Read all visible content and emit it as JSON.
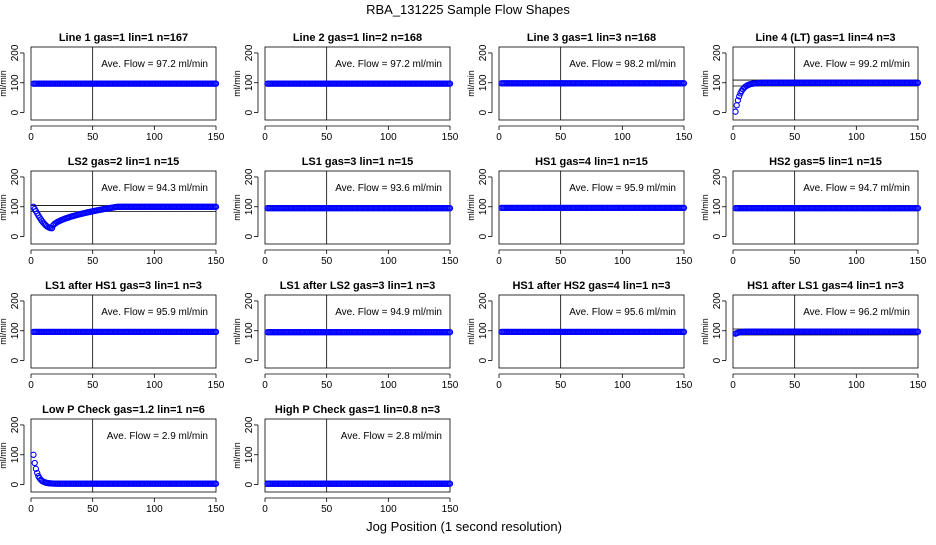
{
  "title": "RBA_131225  Sample Flow Shapes",
  "xlabel": "Jog Position (1 second resolution)",
  "colors": {
    "points": "#0000ff",
    "lines": "#000000"
  },
  "chart_data": [
    {
      "type": "scatter",
      "title": "Line 1 gas=1 lin=1 n=167",
      "ylabel": "ml/min",
      "annotation": "Ave. Flow = 97.2  ml/min",
      "xlim": [
        0,
        150
      ],
      "ylim": [
        -25,
        220
      ],
      "xticks": [
        0,
        50,
        100,
        150
      ],
      "yticks": [
        0,
        100,
        200
      ],
      "vline": 50,
      "hlines": [],
      "shape": {
        "kind": "flat",
        "level": 97.2
      }
    },
    {
      "type": "scatter",
      "title": "Line 2 gas=1 lin=2 n=168",
      "ylabel": "ml/min",
      "annotation": "Ave. Flow = 97.2  ml/min",
      "xlim": [
        0,
        150
      ],
      "ylim": [
        -25,
        220
      ],
      "xticks": [
        0,
        50,
        100,
        150
      ],
      "yticks": [
        0,
        100,
        200
      ],
      "vline": 50,
      "hlines": [],
      "shape": {
        "kind": "flat",
        "level": 97.2
      }
    },
    {
      "type": "scatter",
      "title": "Line 3 gas=1 lin=3 n=168",
      "ylabel": "ml/min",
      "annotation": "Ave. Flow = 98.2  ml/min",
      "xlim": [
        0,
        150
      ],
      "ylim": [
        -25,
        220
      ],
      "xticks": [
        0,
        50,
        100,
        150
      ],
      "yticks": [
        0,
        100,
        200
      ],
      "vline": 50,
      "hlines": [],
      "shape": {
        "kind": "flat",
        "level": 98.2
      }
    },
    {
      "type": "scatter",
      "title": "Line 4 (LT) gas=1 lin=4 n=3",
      "ylabel": "ml/min",
      "annotation": "Ave. Flow = 99.2  ml/min",
      "xlim": [
        0,
        150
      ],
      "ylim": [
        -25,
        220
      ],
      "xticks": [
        0,
        50,
        100,
        150
      ],
      "yticks": [
        0,
        100,
        200
      ],
      "vline": 50,
      "hlines": [
        89,
        109
      ],
      "shape": {
        "kind": "rise",
        "start": 3,
        "level": 100,
        "tau": 4
      }
    },
    {
      "type": "scatter",
      "title": "LS2 gas=2 lin=1 n=15",
      "ylabel": "ml/min",
      "annotation": "Ave. Flow = 94.3  ml/min",
      "xlim": [
        0,
        150
      ],
      "ylim": [
        -25,
        220
      ],
      "xticks": [
        0,
        50,
        100,
        150
      ],
      "yticks": [
        0,
        100,
        200
      ],
      "vline": 50,
      "hlines": [
        84,
        104
      ],
      "shape": {
        "kind": "dip",
        "start": 100,
        "min": 28,
        "min_x": 17,
        "level": 100,
        "recover_x": 70
      }
    },
    {
      "type": "scatter",
      "title": "LS1 gas=3 lin=1 n=15",
      "ylabel": "ml/min",
      "annotation": "Ave. Flow = 93.6  ml/min",
      "xlim": [
        0,
        150
      ],
      "ylim": [
        -25,
        220
      ],
      "xticks": [
        0,
        50,
        100,
        150
      ],
      "yticks": [
        0,
        100,
        200
      ],
      "vline": 50,
      "hlines": [],
      "shape": {
        "kind": "flat",
        "level": 95
      }
    },
    {
      "type": "scatter",
      "title": "HS1 gas=4 lin=1 n=15",
      "ylabel": "ml/min",
      "annotation": "Ave. Flow = 95.9  ml/min",
      "xlim": [
        0,
        150
      ],
      "ylim": [
        -25,
        220
      ],
      "xticks": [
        0,
        50,
        100,
        150
      ],
      "yticks": [
        0,
        100,
        200
      ],
      "vline": 50,
      "hlines": [],
      "shape": {
        "kind": "flat",
        "level": 96
      }
    },
    {
      "type": "scatter",
      "title": "HS2 gas=5 lin=1 n=15",
      "ylabel": "ml/min",
      "annotation": "Ave. Flow = 94.7  ml/min",
      "xlim": [
        0,
        150
      ],
      "ylim": [
        -25,
        220
      ],
      "xticks": [
        0,
        50,
        100,
        150
      ],
      "yticks": [
        0,
        100,
        200
      ],
      "vline": 50,
      "hlines": [],
      "shape": {
        "kind": "flat",
        "level": 95
      }
    },
    {
      "type": "scatter",
      "title": "LS1 after HS1 gas=3 lin=1 n=3",
      "ylabel": "ml/min",
      "annotation": "Ave. Flow = 95.9  ml/min",
      "xlim": [
        0,
        150
      ],
      "ylim": [
        -25,
        220
      ],
      "xticks": [
        0,
        50,
        100,
        150
      ],
      "yticks": [
        0,
        100,
        200
      ],
      "vline": 50,
      "hlines": [],
      "shape": {
        "kind": "flat",
        "level": 96
      }
    },
    {
      "type": "scatter",
      "title": "LS1 after LS2 gas=3 lin=1 n=3",
      "ylabel": "ml/min",
      "annotation": "Ave. Flow = 94.9  ml/min",
      "xlim": [
        0,
        150
      ],
      "ylim": [
        -25,
        220
      ],
      "xticks": [
        0,
        50,
        100,
        150
      ],
      "yticks": [
        0,
        100,
        200
      ],
      "vline": 50,
      "hlines": [],
      "shape": {
        "kind": "flat",
        "level": 95
      }
    },
    {
      "type": "scatter",
      "title": "HS1 after HS2 gas=4 lin=1 n=3",
      "ylabel": "ml/min",
      "annotation": "Ave. Flow = 95.6  ml/min",
      "xlim": [
        0,
        150
      ],
      "ylim": [
        -25,
        220
      ],
      "xticks": [
        0,
        50,
        100,
        150
      ],
      "yticks": [
        0,
        100,
        200
      ],
      "vline": 50,
      "hlines": [],
      "shape": {
        "kind": "flat",
        "level": 96
      }
    },
    {
      "type": "scatter",
      "title": "HS1 after LS1 gas=4 lin=1 n=3",
      "ylabel": "ml/min",
      "annotation": "Ave. Flow = 96.2  ml/min",
      "xlim": [
        0,
        150
      ],
      "ylim": [
        -25,
        220
      ],
      "xticks": [
        0,
        50,
        100,
        150
      ],
      "yticks": [
        0,
        100,
        200
      ],
      "vline": 50,
      "hlines": [
        86,
        106
      ],
      "shape": {
        "kind": "rise",
        "start": 90,
        "level": 97,
        "tau": 3
      }
    },
    {
      "type": "scatter",
      "title": "Low P Check gas=1.2 lin=1 n=6",
      "ylabel": "ml/min",
      "annotation": "Ave. Flow = 2.9  ml/min",
      "xlim": [
        0,
        150
      ],
      "ylim": [
        -25,
        220
      ],
      "xticks": [
        0,
        50,
        100,
        150
      ],
      "yticks": [
        0,
        100,
        200
      ],
      "vline": 50,
      "hlines": [],
      "shape": {
        "kind": "decay",
        "start": 100,
        "level": 2.9,
        "tau": 3
      }
    },
    {
      "type": "scatter",
      "title": "High P Check gas=1 lin=0.8 n=3",
      "ylabel": "ml/min",
      "annotation": "Ave. Flow = 2.8  ml/min",
      "xlim": [
        0,
        150
      ],
      "ylim": [
        -25,
        220
      ],
      "xticks": [
        0,
        50,
        100,
        150
      ],
      "yticks": [
        0,
        100,
        200
      ],
      "vline": 50,
      "hlines": [
        -6,
        12
      ],
      "shape": {
        "kind": "flat",
        "level": 2.8
      }
    }
  ]
}
